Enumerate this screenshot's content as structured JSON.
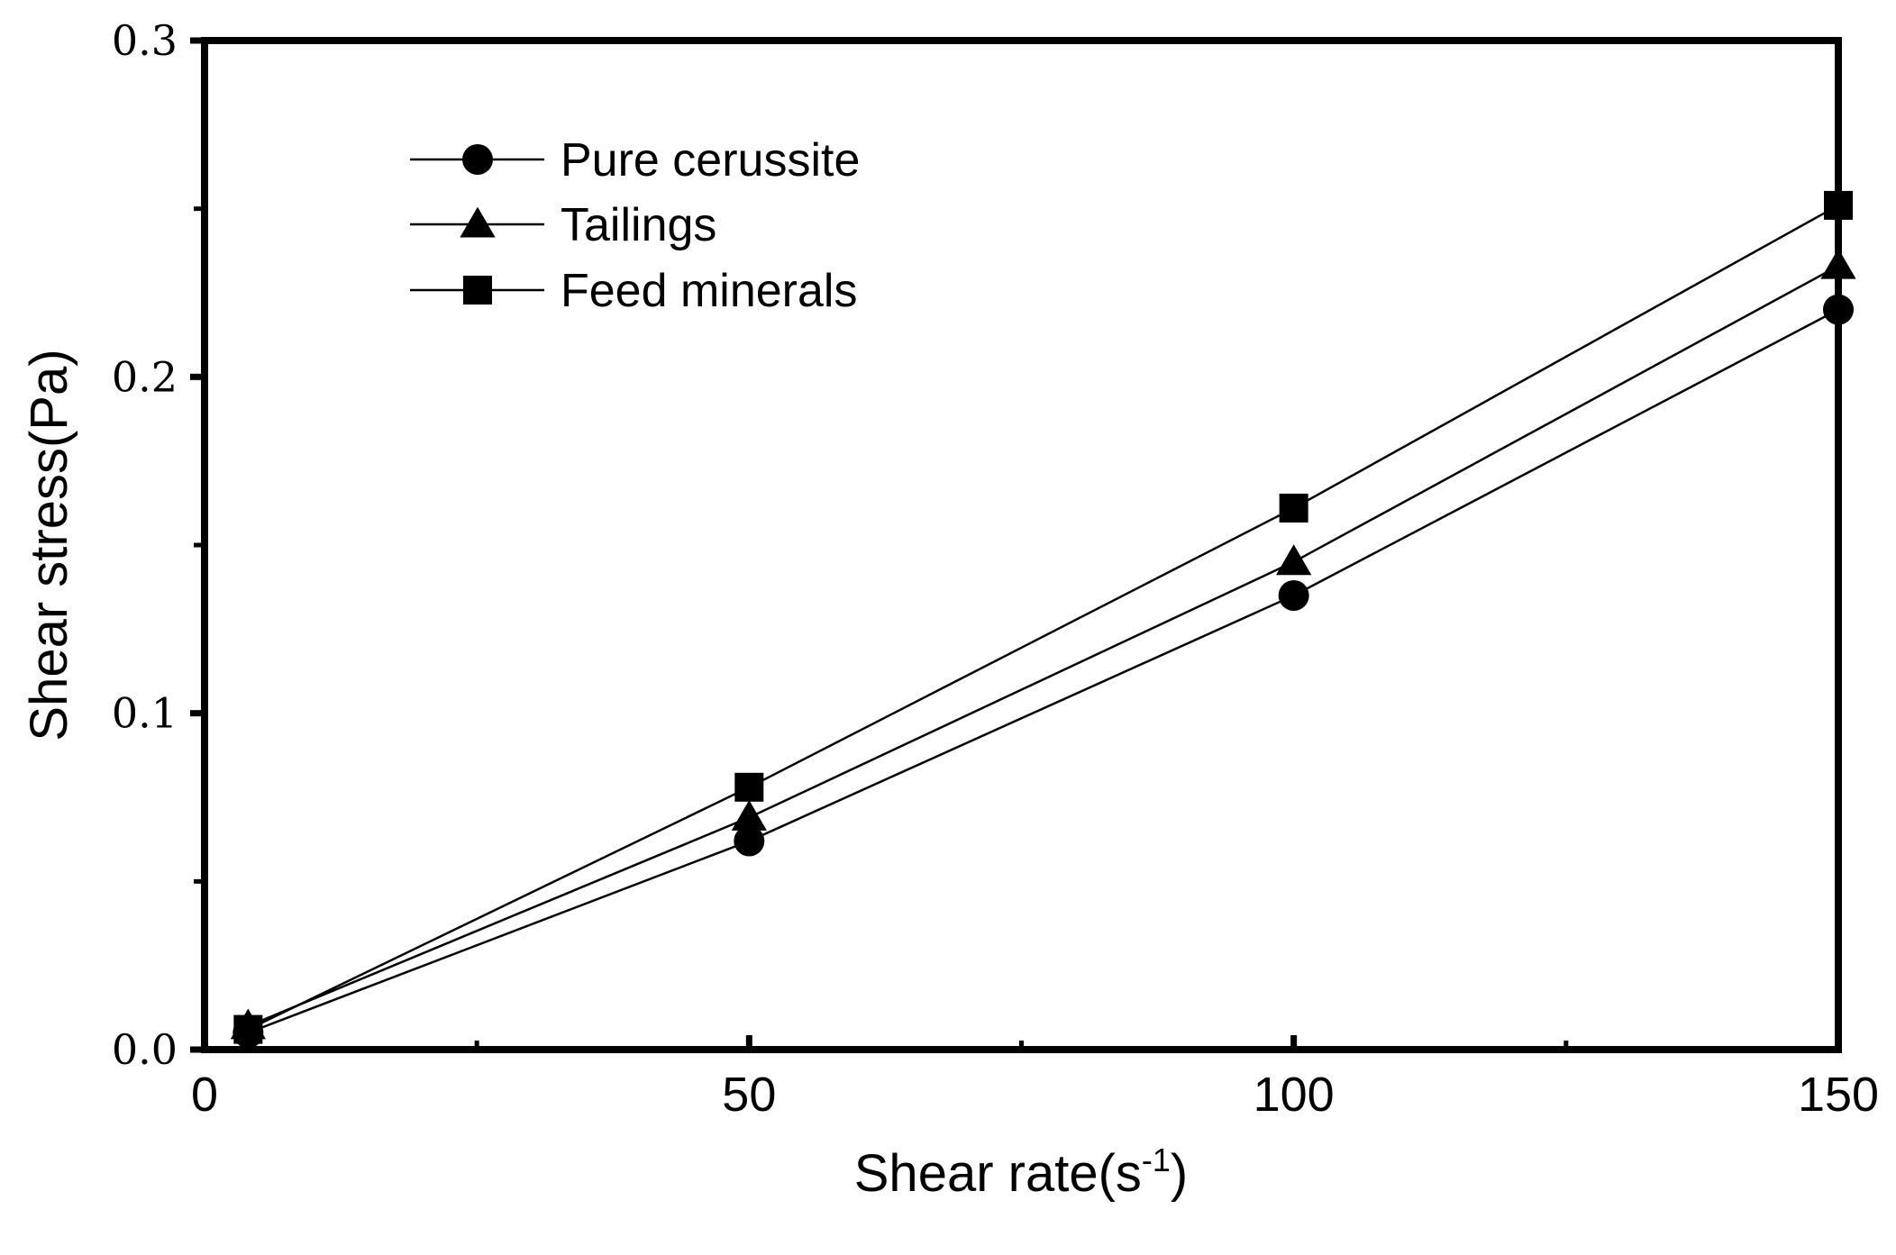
{
  "chart_data": {
    "type": "line",
    "title": "",
    "xlabel": "Shear rate(s",
    "xlabel_sup": "-1",
    "xlabel_suffix": ")",
    "ylabel": "Shear stress(Pa)",
    "xlim": [
      0,
      150
    ],
    "ylim": [
      0,
      0.3
    ],
    "x_ticks": [
      0,
      50,
      100,
      150
    ],
    "x_tick_labels": [
      "0",
      "50",
      "100",
      "150"
    ],
    "x_minor_ticks": [
      25,
      75,
      125
    ],
    "y_ticks": [
      0,
      0.1,
      0.2,
      0.3
    ],
    "y_tick_labels": [
      "0.0",
      "0.1",
      "0.2",
      "0.3"
    ],
    "y_minor_ticks": [
      0.05,
      0.15,
      0.25
    ],
    "legend_position": "top-left",
    "grid": false,
    "series": [
      {
        "name": "Pure cerussite",
        "marker": "circle",
        "x": [
          4,
          50,
          100,
          150
        ],
        "y": [
          0.005,
          0.062,
          0.135,
          0.22
        ]
      },
      {
        "name": "Tailings",
        "marker": "triangle",
        "x": [
          4,
          50,
          100,
          150
        ],
        "y": [
          0.007,
          0.069,
          0.145,
          0.233
        ]
      },
      {
        "name": "Feed minerals",
        "marker": "square",
        "x": [
          4,
          50,
          100,
          150
        ],
        "y": [
          0.006,
          0.078,
          0.161,
          0.251
        ]
      }
    ]
  }
}
